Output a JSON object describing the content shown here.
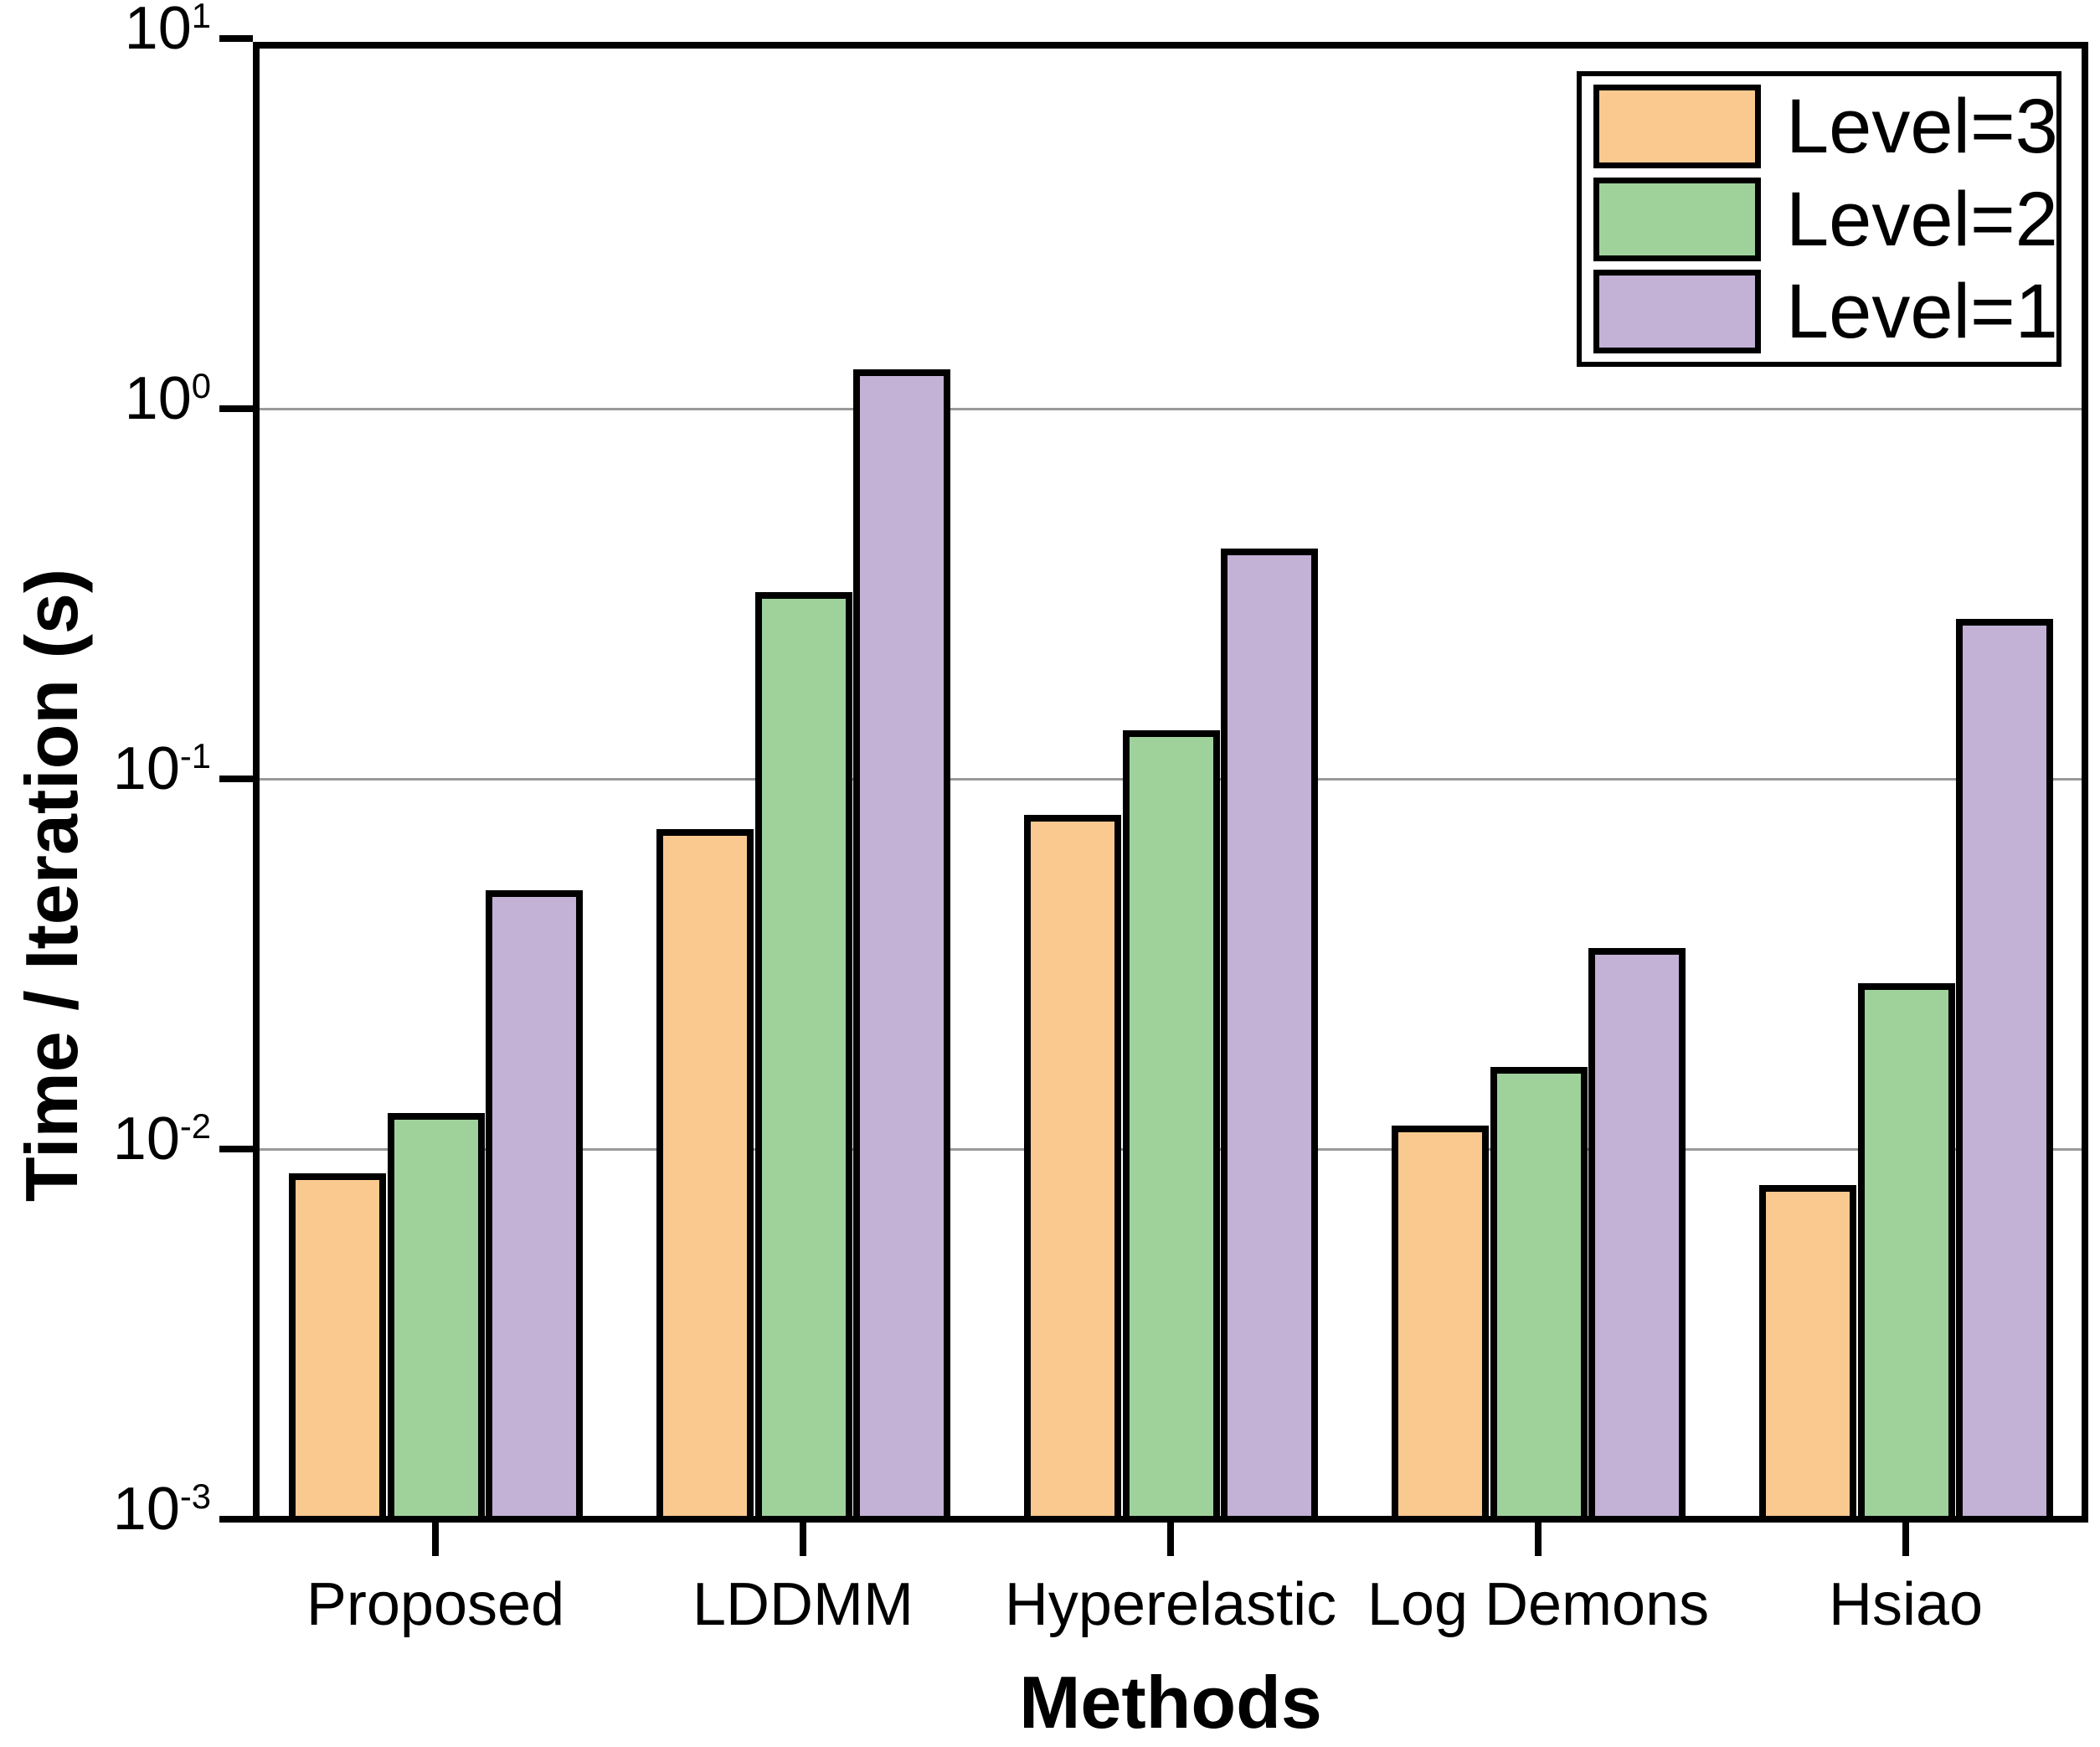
{
  "chart_data": {
    "type": "bar",
    "yscale": "log",
    "title": "",
    "xlabel": "Methods",
    "ylabel": "Time / Iteration (s)",
    "ylim": [
      0.001,
      10
    ],
    "ytick_exponents": [
      1,
      0,
      -1,
      -2,
      -3
    ],
    "grid": "horizontal major gridlines",
    "gridline_color": "#999999",
    "legend_position": "top-right inside",
    "bar_edge_color": "#000000",
    "categories": [
      "Proposed",
      "LDDMM",
      "Hyperelastic",
      "Log Demons",
      "Hsiao"
    ],
    "series": [
      {
        "name": "Level=3",
        "color": "#FAC98F",
        "values": [
          0.0086,
          0.073,
          0.08,
          0.0116,
          0.008
        ]
      },
      {
        "name": "Level=2",
        "color": "#9FD29B",
        "values": [
          0.0125,
          0.32,
          0.135,
          0.0167,
          0.028
        ]
      },
      {
        "name": "Level=1",
        "color": "#C3B1D6",
        "values": [
          0.05,
          1.28,
          0.42,
          0.035,
          0.27
        ]
      }
    ]
  }
}
